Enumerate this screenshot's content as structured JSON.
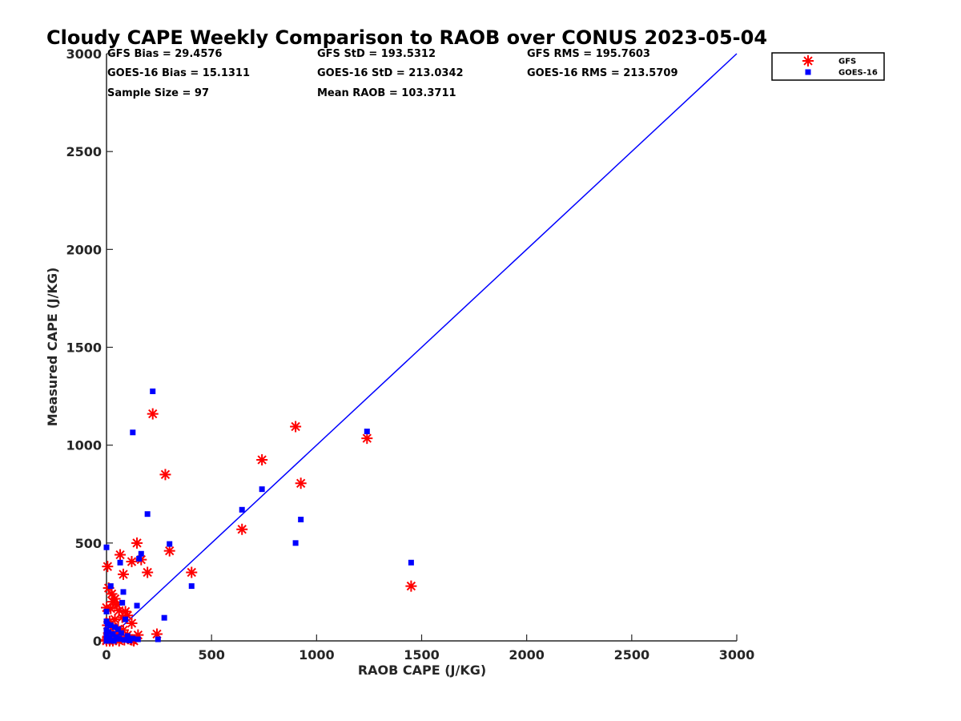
{
  "chart_data": {
    "type": "scatter",
    "title": "Cloudy CAPE Weekly Comparison to RAOB over CONUS 2023-05-04",
    "xlabel": "RAOB CAPE (J/KG)",
    "ylabel": "Measured CAPE (J/KG)",
    "xlim": [
      0,
      3000
    ],
    "ylim": [
      0,
      3000
    ],
    "xticks": [
      0,
      500,
      1000,
      1500,
      2000,
      2500,
      3000
    ],
    "yticks": [
      0,
      500,
      1000,
      1500,
      2000,
      2500,
      3000
    ],
    "grid": false,
    "legend_position": "top-right, outside plot area",
    "reference_line": {
      "x": [
        0,
        3000
      ],
      "y": [
        0,
        3000
      ],
      "color": "#0000ff"
    },
    "stats": [
      [
        "GFS Bias = 29.4576",
        "GFS StD = 193.5312",
        "GFS RMS = 195.7603"
      ],
      [
        "GOES-16 Bias = 15.1311",
        "GOES-16 StD = 213.0342",
        "GOES-16 RMS = 213.5709"
      ],
      [
        "Sample Size = 97",
        "Mean RAOB = 103.3711",
        ""
      ]
    ],
    "series": [
      {
        "name": "GFS",
        "marker": "asterisk",
        "color": "#ff0000",
        "points": [
          [
            220,
            1160
          ],
          [
            900,
            1095
          ],
          [
            1240,
            1035
          ],
          [
            280,
            850
          ],
          [
            740,
            925
          ],
          [
            925,
            805
          ],
          [
            645,
            570
          ],
          [
            1450,
            280
          ],
          [
            300,
            460
          ],
          [
            405,
            350
          ],
          [
            145,
            500
          ],
          [
            165,
            415
          ],
          [
            120,
            405
          ],
          [
            65,
            440
          ],
          [
            195,
            350
          ],
          [
            80,
            340
          ],
          [
            5,
            380
          ],
          [
            10,
            270
          ],
          [
            25,
            240
          ],
          [
            40,
            215
          ],
          [
            30,
            200
          ],
          [
            50,
            185
          ],
          [
            0,
            170
          ],
          [
            20,
            165
          ],
          [
            60,
            155
          ],
          [
            90,
            150
          ],
          [
            100,
            130
          ],
          [
            75,
            120
          ],
          [
            40,
            110
          ],
          [
            15,
            100
          ],
          [
            120,
            90
          ],
          [
            5,
            80
          ],
          [
            30,
            70
          ],
          [
            55,
            60
          ],
          [
            80,
            55
          ],
          [
            10,
            40
          ],
          [
            240,
            35
          ],
          [
            150,
            30
          ],
          [
            100,
            30
          ],
          [
            35,
            25
          ],
          [
            65,
            20
          ],
          [
            5,
            15
          ],
          [
            25,
            10
          ],
          [
            45,
            8
          ],
          [
            85,
            5
          ],
          [
            120,
            5
          ],
          [
            0,
            5
          ],
          [
            15,
            0
          ],
          [
            60,
            0
          ],
          [
            30,
            0
          ],
          [
            130,
            0
          ],
          [
            0,
            0
          ]
        ]
      },
      {
        "name": "GOES-16",
        "marker": "square",
        "color": "#0000ff",
        "points": [
          [
            220,
            1275
          ],
          [
            125,
            1065
          ],
          [
            1240,
            1070
          ],
          [
            740,
            775
          ],
          [
            195,
            648
          ],
          [
            645,
            670
          ],
          [
            925,
            620
          ],
          [
            900,
            500
          ],
          [
            300,
            495
          ],
          [
            165,
            445
          ],
          [
            155,
            420
          ],
          [
            0,
            478
          ],
          [
            1450,
            400
          ],
          [
            65,
            400
          ],
          [
            405,
            280
          ],
          [
            20,
            280
          ],
          [
            80,
            250
          ],
          [
            75,
            195
          ],
          [
            145,
            180
          ],
          [
            0,
            150
          ],
          [
            275,
            118
          ],
          [
            90,
            110
          ],
          [
            0,
            100
          ],
          [
            5,
            85
          ],
          [
            20,
            80
          ],
          [
            40,
            70
          ],
          [
            55,
            60
          ],
          [
            0,
            55
          ],
          [
            10,
            45
          ],
          [
            70,
            40
          ],
          [
            30,
            35
          ],
          [
            0,
            30
          ],
          [
            100,
            25
          ],
          [
            45,
            20
          ],
          [
            15,
            15
          ],
          [
            125,
            12
          ],
          [
            60,
            10
          ],
          [
            150,
            8
          ],
          [
            245,
            8
          ],
          [
            85,
            5
          ],
          [
            0,
            5
          ],
          [
            25,
            3
          ],
          [
            110,
            2
          ],
          [
            35,
            0
          ],
          [
            5,
            0
          ],
          [
            0,
            0
          ]
        ]
      }
    ]
  }
}
